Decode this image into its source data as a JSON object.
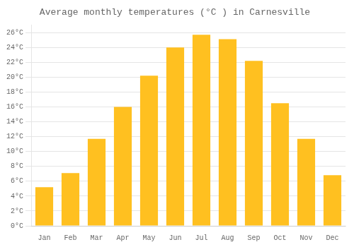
{
  "chart_data": {
    "type": "bar",
    "title": "Average monthly temperatures (°C ) in Carnesville",
    "categories": [
      "Jan",
      "Feb",
      "Mar",
      "Apr",
      "May",
      "Jun",
      "Jul",
      "Aug",
      "Sep",
      "Oct",
      "Nov",
      "Dec"
    ],
    "values": [
      5.2,
      7.1,
      11.7,
      16.0,
      20.2,
      24.0,
      25.7,
      25.1,
      22.2,
      16.5,
      11.7,
      6.8
    ],
    "color": "#FFC020",
    "ylim": [
      0,
      27
    ],
    "yticks": [
      {
        "value": 0,
        "label": "0°C"
      },
      {
        "value": 2,
        "label": "2°C"
      },
      {
        "value": 4,
        "label": "4°C"
      },
      {
        "value": 6,
        "label": "6°C"
      },
      {
        "value": 8,
        "label": "8°C"
      },
      {
        "value": 10,
        "label": "10°C"
      },
      {
        "value": 12,
        "label": "12°C"
      },
      {
        "value": 14,
        "label": "14°C"
      },
      {
        "value": 16,
        "label": "16°C"
      },
      {
        "value": 18,
        "label": "18°C"
      },
      {
        "value": 20,
        "label": "20°C"
      },
      {
        "value": 22,
        "label": "22°C"
      },
      {
        "value": 24,
        "label": "24°C"
      },
      {
        "value": 26,
        "label": "26°C"
      }
    ],
    "grid": true
  }
}
